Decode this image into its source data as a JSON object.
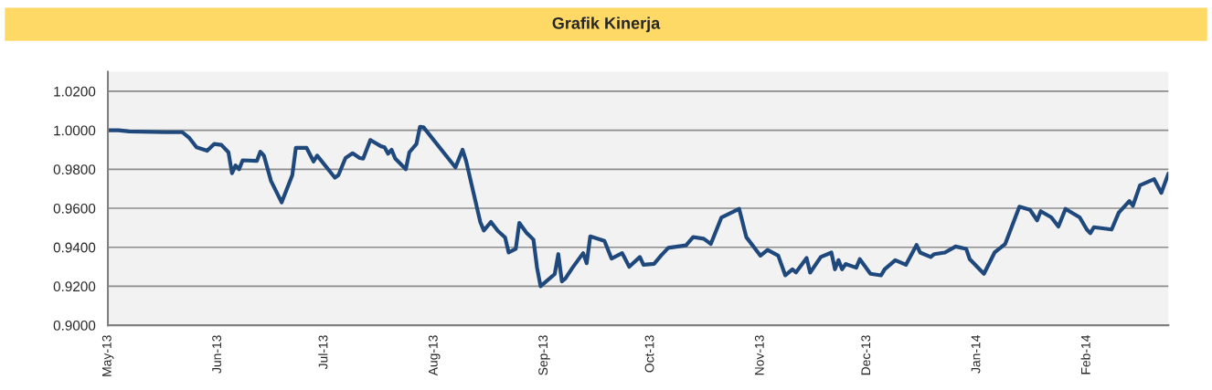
{
  "chart_data": {
    "type": "line",
    "title": "Grafik Kinerja",
    "x": [
      "2013-05-01",
      "2013-05-04",
      "2013-05-07",
      "2013-05-17",
      "2013-05-22",
      "2013-05-24",
      "2013-05-26",
      "2013-05-29",
      "2013-05-31",
      "2013-06-02",
      "2013-06-04",
      "2013-06-05",
      "2013-06-06",
      "2013-06-07",
      "2013-06-08",
      "2013-06-12",
      "2013-06-13",
      "2013-06-14",
      "2013-06-16",
      "2013-06-19",
      "2013-06-22",
      "2013-06-23",
      "2013-06-26",
      "2013-06-28",
      "2013-06-29",
      "2013-06-30",
      "2013-07-04",
      "2013-07-05",
      "2013-07-07",
      "2013-07-09",
      "2013-07-11",
      "2013-07-12",
      "2013-07-14",
      "2013-07-17",
      "2013-07-18",
      "2013-07-19",
      "2013-07-20",
      "2013-07-21",
      "2013-07-24",
      "2013-07-25",
      "2013-07-27",
      "2013-07-28",
      "2013-07-29",
      "2013-08-07",
      "2013-08-09",
      "2013-08-10",
      "2013-08-14",
      "2013-08-15",
      "2013-08-17",
      "2013-08-19",
      "2013-08-21",
      "2013-08-22",
      "2013-08-24",
      "2013-08-25",
      "2013-08-27",
      "2013-08-29",
      "2013-08-30",
      "2013-08-31",
      "2013-09-04",
      "2013-09-05",
      "2013-09-06",
      "2013-09-07",
      "2013-09-09",
      "2013-09-12",
      "2013-09-13",
      "2013-09-14",
      "2013-09-18",
      "2013-09-20",
      "2013-09-23",
      "2013-09-25",
      "2013-09-28",
      "2013-09-29",
      "2013-10-02",
      "2013-10-04",
      "2013-10-06",
      "2013-10-11",
      "2013-10-13",
      "2013-10-16",
      "2013-10-18",
      "2013-10-21",
      "2013-10-26",
      "2013-10-28",
      "2013-11-01",
      "2013-11-03",
      "2013-11-06",
      "2013-11-08",
      "2013-11-10",
      "2013-11-11",
      "2013-11-14",
      "2013-11-15",
      "2013-11-18",
      "2013-11-21",
      "2013-11-22",
      "2013-11-23",
      "2013-11-24",
      "2013-11-25",
      "2013-11-28",
      "2013-11-29",
      "2013-12-02",
      "2013-12-05",
      "2013-12-06",
      "2013-12-09",
      "2013-12-12",
      "2013-12-15",
      "2013-12-16",
      "2013-12-19",
      "2013-12-20",
      "2013-12-23",
      "2013-12-26",
      "2013-12-29",
      "2013-12-30",
      "2014-01-03",
      "2014-01-06",
      "2014-01-09",
      "2014-01-13",
      "2014-01-16",
      "2014-01-18",
      "2014-01-19",
      "2014-01-22",
      "2014-01-24",
      "2014-01-26",
      "2014-01-30",
      "2014-02-01",
      "2014-02-02",
      "2014-02-03",
      "2014-02-08",
      "2014-02-10",
      "2014-02-13",
      "2014-02-14",
      "2014-02-16",
      "2014-02-20",
      "2014-02-22",
      "2014-02-24"
    ],
    "series": [
      {
        "color": "#1f497d",
        "values": [
          1.0,
          1.0,
          0.9994,
          0.999,
          0.999,
          0.996,
          0.9913,
          0.9895,
          0.993,
          0.9925,
          0.9887,
          0.978,
          0.982,
          0.98,
          0.9846,
          0.9843,
          0.989,
          0.987,
          0.974,
          0.963,
          0.977,
          0.991,
          0.991,
          0.984,
          0.987,
          0.9848,
          0.9757,
          0.977,
          0.9858,
          0.9882,
          0.9858,
          0.9855,
          0.995,
          0.9918,
          0.9913,
          0.988,
          0.99,
          0.9855,
          0.98,
          0.9887,
          0.993,
          1.0018,
          1.0015,
          0.981,
          0.99,
          0.9843,
          0.953,
          0.9486,
          0.953,
          0.9483,
          0.945,
          0.9373,
          0.9392,
          0.9525,
          0.9475,
          0.9439,
          0.9295,
          0.92,
          0.9263,
          0.9365,
          0.9225,
          0.924,
          0.9295,
          0.937,
          0.9318,
          0.9456,
          0.9433,
          0.9342,
          0.937,
          0.93,
          0.935,
          0.931,
          0.9315,
          0.9358,
          0.9397,
          0.941,
          0.9452,
          0.9444,
          0.9417,
          0.9553,
          0.9597,
          0.9452,
          0.9357,
          0.9386,
          0.9357,
          0.9256,
          0.9287,
          0.9271,
          0.9345,
          0.927,
          0.935,
          0.9373,
          0.9287,
          0.9334,
          0.9287,
          0.9314,
          0.9295,
          0.9339,
          0.9264,
          0.9256,
          0.9287,
          0.9334,
          0.931,
          0.9412,
          0.9373,
          0.935,
          0.9365,
          0.9373,
          0.9404,
          0.9392,
          0.9339,
          0.9264,
          0.9373,
          0.9417,
          0.9608,
          0.9592,
          0.9538,
          0.9585,
          0.9553,
          0.9506,
          0.9597,
          0.9553,
          0.9491,
          0.9472,
          0.9503,
          0.9491,
          0.9577,
          0.9637,
          0.9613,
          0.9718,
          0.9749,
          0.9679,
          0.9777
        ]
      }
    ],
    "xlim": [
      "2013-05-01",
      "2014-02-24"
    ],
    "xticks": [
      {
        "value": "2013-05-01",
        "label": "May-13"
      },
      {
        "value": "2013-06-01",
        "label": "Jun-13"
      },
      {
        "value": "2013-07-01",
        "label": "Jul-13"
      },
      {
        "value": "2013-08-01",
        "label": "Aug-13"
      },
      {
        "value": "2013-09-01",
        "label": "Sep-13"
      },
      {
        "value": "2013-10-01",
        "label": "Oct-13"
      },
      {
        "value": "2013-11-01",
        "label": "Nov-13"
      },
      {
        "value": "2013-12-01",
        "label": "Dec-13"
      },
      {
        "value": "2014-01-01",
        "label": "Jan-14"
      },
      {
        "value": "2014-02-01",
        "label": "Feb-14"
      }
    ],
    "ylim": [
      0.9,
      1.03
    ],
    "yticks": [
      {
        "value": 0.9,
        "label": "0.9000"
      },
      {
        "value": 0.92,
        "label": "0.9200"
      },
      {
        "value": 0.94,
        "label": "0.9400"
      },
      {
        "value": 0.96,
        "label": "0.9600"
      },
      {
        "value": 0.98,
        "label": "0.9800"
      },
      {
        "value": 1.0,
        "label": "1.0000"
      },
      {
        "value": 1.02,
        "label": "1.0200"
      }
    ],
    "grid": "y",
    "marker": "none",
    "line_style": "solid"
  }
}
